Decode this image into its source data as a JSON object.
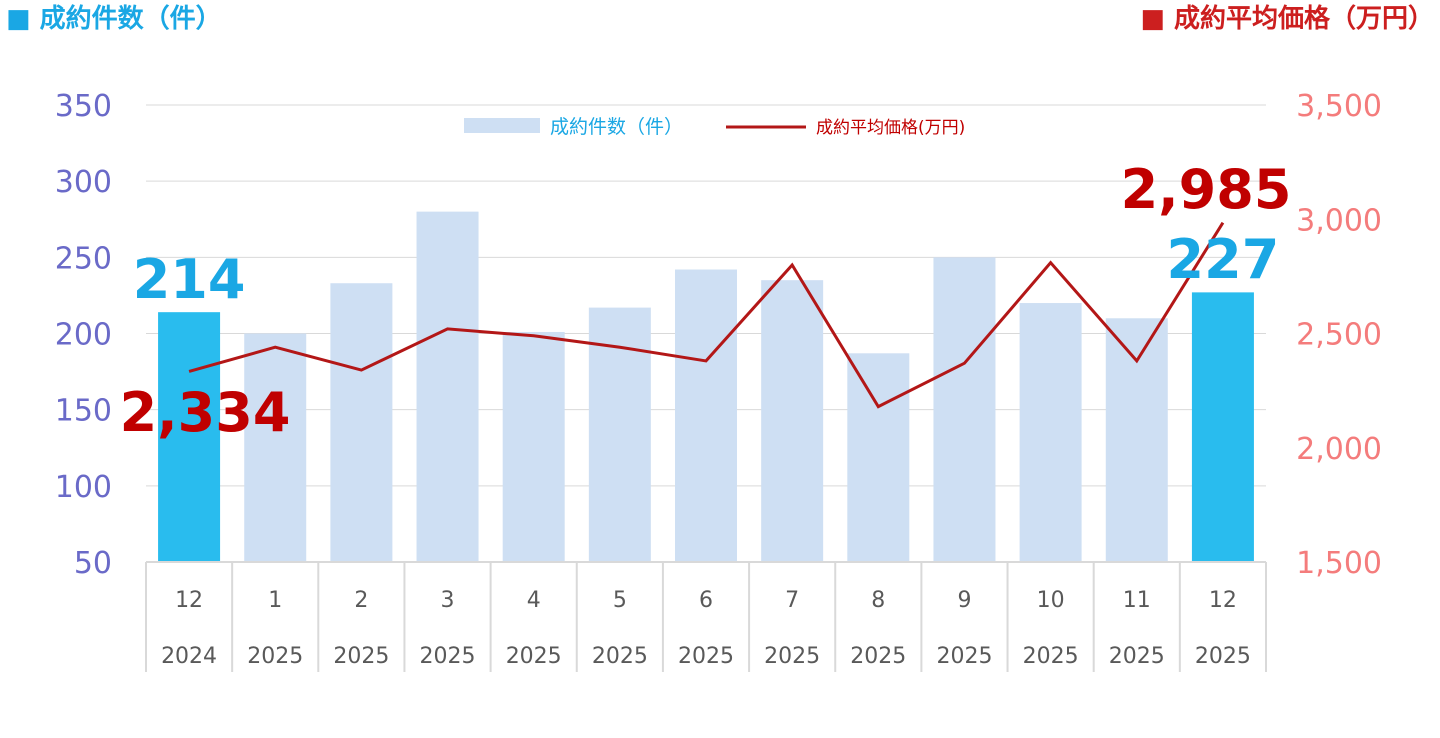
{
  "header": {
    "left_title": "■ 成約件数（件）",
    "right_title": "■ 成約平均価格（万円）"
  },
  "colors": {
    "bar_highlight": "#29bcee",
    "bar_normal": "#cedff3",
    "line": "#b31717",
    "left_axis_text": "#6a6ac8",
    "right_axis_text": "#f47c7c",
    "bar_label": "#1aa7e4",
    "line_label": "#c00000"
  },
  "chart_data": {
    "type": "bar+line",
    "categories": [
      "12",
      "1",
      "2",
      "3",
      "4",
      "5",
      "6",
      "7",
      "8",
      "9",
      "10",
      "11",
      "12"
    ],
    "years": [
      "2024",
      "2025",
      "2025",
      "2025",
      "2025",
      "2025",
      "2025",
      "2025",
      "2025",
      "2025",
      "2025",
      "2025",
      "2025"
    ],
    "series": [
      {
        "name": "成約件数（件）",
        "type": "bar",
        "axis": "left",
        "values": [
          214,
          200,
          233,
          280,
          201,
          217,
          242,
          235,
          187,
          250,
          220,
          210,
          227
        ],
        "highlight": [
          true,
          false,
          false,
          false,
          false,
          false,
          false,
          false,
          false,
          false,
          false,
          false,
          true
        ]
      },
      {
        "name": "成約平均価格(万円)",
        "type": "line",
        "axis": "right",
        "values": [
          2334,
          2440,
          2340,
          2520,
          2490,
          2440,
          2380,
          2800,
          2180,
          2370,
          2810,
          2380,
          2985
        ]
      }
    ],
    "left_axis": {
      "ylim": [
        50,
        350
      ],
      "ticks": [
        "350",
        "300",
        "250",
        "200",
        "150",
        "100",
        "50"
      ]
    },
    "right_axis": {
      "ylim": [
        1500,
        3500
      ],
      "ticks": [
        "3,500",
        "3,000",
        "2,500",
        "2,000",
        "1,500"
      ]
    },
    "grid": true,
    "legend": "top-center",
    "annotations": {
      "first_bar": "214",
      "last_bar": "227",
      "first_line": "2,334",
      "last_line": "2,985"
    }
  }
}
